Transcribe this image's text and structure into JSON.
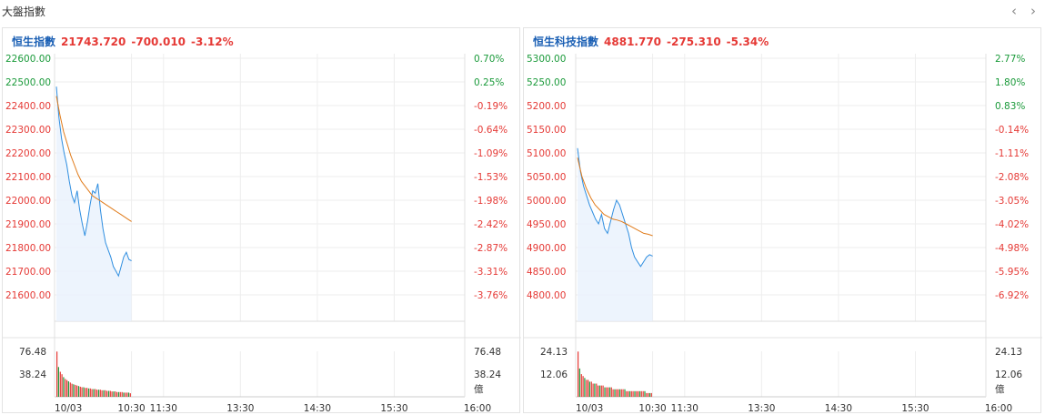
{
  "header": {
    "title": "大盤指數",
    "prev": "‹",
    "next": "›"
  },
  "panels": [
    {
      "name": "恒生指數",
      "price": "21743.720",
      "change": "-700.010",
      "pct": "-3.12%",
      "left_ticks": [
        "22600.00",
        "22500.00",
        "22400.00",
        "22300.00",
        "22200.00",
        "22100.00",
        "22000.00",
        "21900.00",
        "21800.00",
        "21700.00",
        "21600.00"
      ],
      "right_ticks": [
        "0.70%",
        "0.25%",
        "-0.19%",
        "-0.64%",
        "-1.09%",
        "-1.53%",
        "-1.98%",
        "-2.42%",
        "-2.87%",
        "-3.31%",
        "-3.76%"
      ],
      "price_range": [
        21600,
        22600
      ],
      "vol_left": [
        "76.48",
        "38.24"
      ],
      "vol_right": [
        "76.48",
        "38.24",
        "億"
      ],
      "vol_max": 76.48,
      "time_labels": [
        "10/03",
        "10:30",
        "11:30",
        "13:30",
        "14:30",
        "15:30",
        "16:00"
      ],
      "price_series": [
        22480,
        22350,
        22260,
        22200,
        22150,
        22080,
        22020,
        21990,
        22040,
        21960,
        21900,
        21850,
        21910,
        21980,
        22040,
        22030,
        22070,
        21960,
        21880,
        21820,
        21790,
        21760,
        21720,
        21700,
        21680,
        21720,
        21760,
        21780,
        21750,
        21744
      ],
      "avg_series": [
        22440,
        22360,
        22290,
        22240,
        22190,
        22150,
        22110,
        22080,
        22060,
        22040,
        22020,
        22010,
        22000,
        21990,
        21980,
        21970,
        21960,
        21950,
        21940,
        21930,
        21920,
        21910
      ],
      "volumes": [
        76,
        50,
        42,
        38,
        33,
        30,
        28,
        26,
        24,
        22,
        21,
        20,
        19,
        18,
        17,
        16,
        16,
        15,
        15,
        14,
        14,
        13,
        13,
        13,
        12,
        12,
        12,
        11,
        11,
        11,
        10,
        10,
        10,
        9,
        9,
        9,
        8,
        8,
        8,
        8,
        7,
        7,
        7,
        7,
        6
      ]
    },
    {
      "name": "恒生科技指數",
      "price": "4881.770",
      "change": "-275.310",
      "pct": "-5.34%",
      "left_ticks": [
        "5300.00",
        "5250.00",
        "5200.00",
        "5150.00",
        "5100.00",
        "5050.00",
        "5000.00",
        "4950.00",
        "4900.00",
        "4850.00",
        "4800.00"
      ],
      "right_ticks": [
        "2.77%",
        "1.80%",
        "0.83%",
        "-0.14%",
        "-1.11%",
        "-2.08%",
        "-3.05%",
        "-4.02%",
        "-4.98%",
        "-5.95%",
        "-6.92%"
      ],
      "price_range": [
        4800,
        5300
      ],
      "vol_left": [
        "24.13",
        "12.06"
      ],
      "vol_right": [
        "24.13",
        "12.06",
        "億"
      ],
      "vol_max": 24.13,
      "time_labels": [
        "10/03",
        "10:30",
        "11:30",
        "13:30",
        "14:30",
        "15:30",
        "16:00"
      ],
      "price_series": [
        5110,
        5060,
        5030,
        5010,
        4990,
        4975,
        4960,
        4950,
        4970,
        4940,
        4930,
        4955,
        4980,
        5000,
        4990,
        4970,
        4950,
        4930,
        4900,
        4880,
        4870,
        4860,
        4870,
        4880,
        4885,
        4882
      ],
      "avg_series": [
        5090,
        5050,
        5025,
        5005,
        4990,
        4980,
        4970,
        4965,
        4960,
        4958,
        4955,
        4950,
        4945,
        4940,
        4935,
        4930,
        4928,
        4925
      ],
      "volumes": [
        24,
        15,
        12,
        11,
        10,
        9,
        9,
        8,
        8,
        7,
        7,
        7,
        6,
        6,
        6,
        6,
        5,
        5,
        5,
        5,
        5,
        4,
        4,
        4,
        4,
        4,
        4,
        4,
        4,
        3,
        3,
        3,
        3,
        3,
        3,
        3,
        3,
        3,
        3,
        3,
        3,
        2,
        2,
        2,
        2
      ]
    }
  ]
}
